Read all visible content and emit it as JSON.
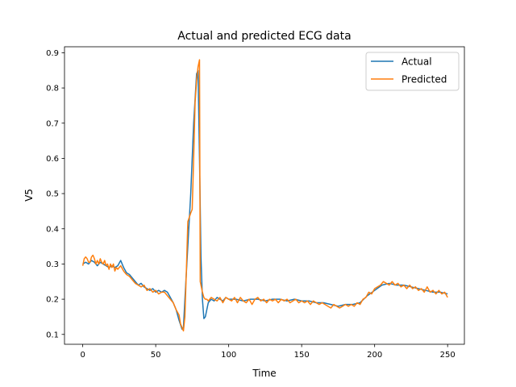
{
  "chart_data": {
    "type": "line",
    "title": "Actual and predicted ECG data",
    "xlabel": "Time",
    "ylabel": "V5",
    "xlim": [
      -12.5,
      261.5
    ],
    "ylim": [
      0.072,
      0.917
    ],
    "xticks": [
      0,
      50,
      100,
      150,
      200,
      250
    ],
    "yticks": [
      0.1,
      0.2,
      0.3,
      0.4,
      0.5,
      0.6,
      0.7,
      0.8,
      0.9
    ],
    "grid": false,
    "legend_position": "top-right",
    "series": [
      {
        "name": "Actual",
        "color": "#1f77b4",
        "points": [
          [
            0,
            0.3
          ],
          [
            2,
            0.305
          ],
          [
            4,
            0.3
          ],
          [
            6,
            0.31
          ],
          [
            8,
            0.305
          ],
          [
            10,
            0.295
          ],
          [
            12,
            0.305
          ],
          [
            14,
            0.3
          ],
          [
            16,
            0.295
          ],
          [
            18,
            0.29
          ],
          [
            20,
            0.295
          ],
          [
            22,
            0.29
          ],
          [
            24,
            0.295
          ],
          [
            26,
            0.31
          ],
          [
            28,
            0.29
          ],
          [
            30,
            0.275
          ],
          [
            32,
            0.27
          ],
          [
            34,
            0.26
          ],
          [
            36,
            0.25
          ],
          [
            38,
            0.24
          ],
          [
            40,
            0.245
          ],
          [
            42,
            0.235
          ],
          [
            44,
            0.23
          ],
          [
            46,
            0.225
          ],
          [
            48,
            0.23
          ],
          [
            50,
            0.22
          ],
          [
            52,
            0.225
          ],
          [
            54,
            0.22
          ],
          [
            56,
            0.225
          ],
          [
            58,
            0.22
          ],
          [
            60,
            0.205
          ],
          [
            62,
            0.19
          ],
          [
            64,
            0.17
          ],
          [
            66,
            0.14
          ],
          [
            68,
            0.115
          ],
          [
            69,
            0.12
          ],
          [
            70,
            0.2
          ],
          [
            72,
            0.35
          ],
          [
            74,
            0.5
          ],
          [
            76,
            0.7
          ],
          [
            78,
            0.84
          ],
          [
            79,
            0.85
          ],
          [
            80,
            0.6
          ],
          [
            81,
            0.32
          ],
          [
            82,
            0.2
          ],
          [
            83,
            0.145
          ],
          [
            84,
            0.15
          ],
          [
            86,
            0.19
          ],
          [
            88,
            0.2
          ],
          [
            90,
            0.195
          ],
          [
            92,
            0.205
          ],
          [
            94,
            0.2
          ],
          [
            96,
            0.195
          ],
          [
            98,
            0.205
          ],
          [
            100,
            0.2
          ],
          [
            105,
            0.2
          ],
          [
            110,
            0.195
          ],
          [
            115,
            0.2
          ],
          [
            120,
            0.2
          ],
          [
            125,
            0.195
          ],
          [
            130,
            0.2
          ],
          [
            135,
            0.2
          ],
          [
            140,
            0.195
          ],
          [
            145,
            0.2
          ],
          [
            150,
            0.195
          ],
          [
            155,
            0.195
          ],
          [
            160,
            0.19
          ],
          [
            165,
            0.19
          ],
          [
            170,
            0.185
          ],
          [
            175,
            0.18
          ],
          [
            180,
            0.185
          ],
          [
            185,
            0.185
          ],
          [
            190,
            0.19
          ],
          [
            195,
            0.21
          ],
          [
            200,
            0.225
          ],
          [
            205,
            0.24
          ],
          [
            210,
            0.245
          ],
          [
            215,
            0.24
          ],
          [
            220,
            0.24
          ],
          [
            225,
            0.235
          ],
          [
            230,
            0.23
          ],
          [
            235,
            0.225
          ],
          [
            240,
            0.22
          ],
          [
            245,
            0.22
          ],
          [
            250,
            0.215
          ]
        ]
      },
      {
        "name": "Predicted",
        "color": "#ff7f0e",
        "points": [
          [
            0,
            0.295
          ],
          [
            1,
            0.315
          ],
          [
            2,
            0.32
          ],
          [
            3,
            0.315
          ],
          [
            4,
            0.305
          ],
          [
            5,
            0.305
          ],
          [
            6,
            0.32
          ],
          [
            7,
            0.325
          ],
          [
            8,
            0.315
          ],
          [
            9,
            0.3
          ],
          [
            10,
            0.31
          ],
          [
            11,
            0.3
          ],
          [
            12,
            0.315
          ],
          [
            13,
            0.305
          ],
          [
            14,
            0.3
          ],
          [
            15,
            0.31
          ],
          [
            16,
            0.295
          ],
          [
            17,
            0.3
          ],
          [
            18,
            0.285
          ],
          [
            19,
            0.3
          ],
          [
            20,
            0.29
          ],
          [
            21,
            0.3
          ],
          [
            22,
            0.28
          ],
          [
            23,
            0.29
          ],
          [
            24,
            0.285
          ],
          [
            26,
            0.295
          ],
          [
            28,
            0.28
          ],
          [
            30,
            0.27
          ],
          [
            32,
            0.265
          ],
          [
            34,
            0.255
          ],
          [
            36,
            0.245
          ],
          [
            38,
            0.24
          ],
          [
            40,
            0.235
          ],
          [
            42,
            0.24
          ],
          [
            44,
            0.225
          ],
          [
            46,
            0.23
          ],
          [
            48,
            0.22
          ],
          [
            50,
            0.225
          ],
          [
            52,
            0.215
          ],
          [
            54,
            0.22
          ],
          [
            56,
            0.22
          ],
          [
            58,
            0.21
          ],
          [
            60,
            0.2
          ],
          [
            62,
            0.19
          ],
          [
            64,
            0.17
          ],
          [
            66,
            0.155
          ],
          [
            67,
            0.13
          ],
          [
            68,
            0.12
          ],
          [
            69,
            0.11
          ],
          [
            70,
            0.15
          ],
          [
            71,
            0.28
          ],
          [
            72,
            0.42
          ],
          [
            74,
            0.445
          ],
          [
            75,
            0.455
          ],
          [
            76,
            0.6
          ],
          [
            77,
            0.76
          ],
          [
            78,
            0.82
          ],
          [
            79,
            0.86
          ],
          [
            80,
            0.88
          ],
          [
            80.5,
            0.25
          ],
          [
            81,
            0.24
          ],
          [
            82,
            0.22
          ],
          [
            83,
            0.205
          ],
          [
            84,
            0.2
          ],
          [
            85,
            0.2
          ],
          [
            86,
            0.195
          ],
          [
            88,
            0.205
          ],
          [
            90,
            0.2
          ],
          [
            92,
            0.195
          ],
          [
            94,
            0.205
          ],
          [
            96,
            0.19
          ],
          [
            98,
            0.205
          ],
          [
            100,
            0.2
          ],
          [
            102,
            0.195
          ],
          [
            104,
            0.205
          ],
          [
            106,
            0.19
          ],
          [
            108,
            0.205
          ],
          [
            110,
            0.195
          ],
          [
            112,
            0.19
          ],
          [
            114,
            0.2
          ],
          [
            116,
            0.185
          ],
          [
            118,
            0.2
          ],
          [
            120,
            0.205
          ],
          [
            122,
            0.195
          ],
          [
            124,
            0.2
          ],
          [
            126,
            0.19
          ],
          [
            128,
            0.2
          ],
          [
            130,
            0.195
          ],
          [
            132,
            0.2
          ],
          [
            134,
            0.19
          ],
          [
            136,
            0.2
          ],
          [
            138,
            0.195
          ],
          [
            140,
            0.2
          ],
          [
            142,
            0.19
          ],
          [
            144,
            0.195
          ],
          [
            146,
            0.2
          ],
          [
            148,
            0.19
          ],
          [
            150,
            0.195
          ],
          [
            152,
            0.19
          ],
          [
            154,
            0.195
          ],
          [
            156,
            0.185
          ],
          [
            158,
            0.195
          ],
          [
            160,
            0.19
          ],
          [
            162,
            0.185
          ],
          [
            164,
            0.19
          ],
          [
            166,
            0.185
          ],
          [
            168,
            0.18
          ],
          [
            170,
            0.175
          ],
          [
            172,
            0.185
          ],
          [
            174,
            0.18
          ],
          [
            176,
            0.175
          ],
          [
            178,
            0.18
          ],
          [
            180,
            0.185
          ],
          [
            182,
            0.18
          ],
          [
            184,
            0.185
          ],
          [
            186,
            0.18
          ],
          [
            188,
            0.19
          ],
          [
            190,
            0.185
          ],
          [
            192,
            0.2
          ],
          [
            194,
            0.205
          ],
          [
            196,
            0.22
          ],
          [
            198,
            0.215
          ],
          [
            200,
            0.23
          ],
          [
            202,
            0.235
          ],
          [
            204,
            0.24
          ],
          [
            206,
            0.25
          ],
          [
            208,
            0.245
          ],
          [
            210,
            0.24
          ],
          [
            212,
            0.25
          ],
          [
            214,
            0.24
          ],
          [
            216,
            0.245
          ],
          [
            218,
            0.235
          ],
          [
            220,
            0.24
          ],
          [
            222,
            0.23
          ],
          [
            224,
            0.24
          ],
          [
            226,
            0.23
          ],
          [
            228,
            0.235
          ],
          [
            230,
            0.225
          ],
          [
            232,
            0.23
          ],
          [
            234,
            0.22
          ],
          [
            236,
            0.235
          ],
          [
            238,
            0.22
          ],
          [
            240,
            0.225
          ],
          [
            242,
            0.215
          ],
          [
            244,
            0.225
          ],
          [
            246,
            0.215
          ],
          [
            248,
            0.22
          ],
          [
            250,
            0.205
          ]
        ]
      }
    ]
  }
}
